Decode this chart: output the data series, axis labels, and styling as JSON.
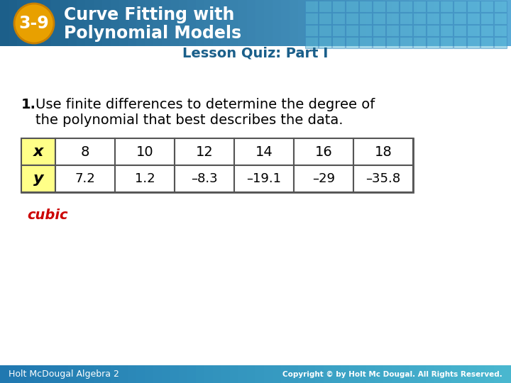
{
  "title_number": "3-9",
  "title_line1": "Curve Fitting with",
  "title_line2": "Polynomial Models",
  "subtitle": "Lesson Quiz: Part I",
  "question_bold": "1.",
  "question_text_line1": "Use finite differences to determine the degree of",
  "question_text_line2": "the polynomial that best describes the data.",
  "table_x_label": "x",
  "table_y_label": "y",
  "table_x_values": [
    "8",
    "10",
    "12",
    "14",
    "16",
    "18"
  ],
  "table_y_values": [
    "7.2",
    "1.2",
    "–8.3",
    "–19.1",
    "–29",
    "–35.8"
  ],
  "answer": "cubic",
  "header_dark_blue": "#1c5f8a",
  "header_mid_blue": "#2878b0",
  "header_light_blue": "#4a9fcf",
  "grid_cell_color": "#4a9fcf",
  "grid_border_color": "#3a8abf",
  "badge_color": "#e8a000",
  "badge_border": "#c88000",
  "title_text_color": "#ffffff",
  "subtitle_color": "#1a5f8a",
  "answer_color": "#cc0000",
  "table_header_bg": "#ffff88",
  "table_border_color": "#555555",
  "footer_bg_left": "#2878b0",
  "footer_bg_right": "#4ab8d0",
  "footer_text_color": "#ffffff",
  "bg_color": "#ffffff",
  "bottom_text_left": "Holt McDougal Algebra 2",
  "bottom_text_right": "Copyright © by Holt Mc Dougal. All Rights Reserved."
}
